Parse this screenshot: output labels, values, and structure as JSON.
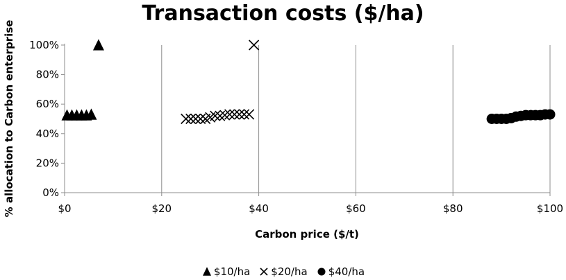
{
  "chart_data": {
    "type": "scatter",
    "title": "Transaction costs ($/ha)",
    "xlabel": "Carbon price ($/t)",
    "ylabel": "% allocation to Carbon enterprise",
    "xlim": [
      0,
      100
    ],
    "ylim": [
      0,
      100
    ],
    "x_ticks": [
      "$0",
      "$20",
      "$40",
      "$60",
      "$80",
      "$100"
    ],
    "y_ticks": [
      "0%",
      "20%",
      "40%",
      "60%",
      "80%",
      "100%"
    ],
    "grid": "vertical",
    "legend_position": "bottom",
    "series": [
      {
        "name": "$10/ha",
        "marker": "triangle",
        "points": [
          {
            "x": 0.5,
            "y": 52.5
          },
          {
            "x": 1.5,
            "y": 52.5
          },
          {
            "x": 2.5,
            "y": 52.5
          },
          {
            "x": 3.5,
            "y": 52.5
          },
          {
            "x": 4.5,
            "y": 52.5
          },
          {
            "x": 5.5,
            "y": 53
          },
          {
            "x": 7,
            "y": 100
          }
        ]
      },
      {
        "name": "$20/ha",
        "marker": "x",
        "points": [
          {
            "x": 25,
            "y": 50
          },
          {
            "x": 26,
            "y": 50
          },
          {
            "x": 27,
            "y": 50
          },
          {
            "x": 28,
            "y": 50
          },
          {
            "x": 29,
            "y": 50
          },
          {
            "x": 30,
            "y": 51
          },
          {
            "x": 31,
            "y": 52
          },
          {
            "x": 32,
            "y": 52
          },
          {
            "x": 33,
            "y": 52.5
          },
          {
            "x": 34,
            "y": 53
          },
          {
            "x": 35,
            "y": 53
          },
          {
            "x": 36,
            "y": 53
          },
          {
            "x": 37,
            "y": 53
          },
          {
            "x": 38,
            "y": 53
          },
          {
            "x": 39,
            "y": 100
          }
        ]
      },
      {
        "name": "$40/ha",
        "marker": "circle",
        "points": [
          {
            "x": 88,
            "y": 50
          },
          {
            "x": 89,
            "y": 50
          },
          {
            "x": 90,
            "y": 50
          },
          {
            "x": 91,
            "y": 50
          },
          {
            "x": 92,
            "y": 50.5
          },
          {
            "x": 93,
            "y": 51.5
          },
          {
            "x": 94,
            "y": 52
          },
          {
            "x": 95,
            "y": 52.5
          },
          {
            "x": 96,
            "y": 52.5
          },
          {
            "x": 97,
            "y": 52.5
          },
          {
            "x": 98,
            "y": 52.5
          },
          {
            "x": 99,
            "y": 53
          },
          {
            "x": 100,
            "y": 53
          }
        ]
      }
    ]
  }
}
